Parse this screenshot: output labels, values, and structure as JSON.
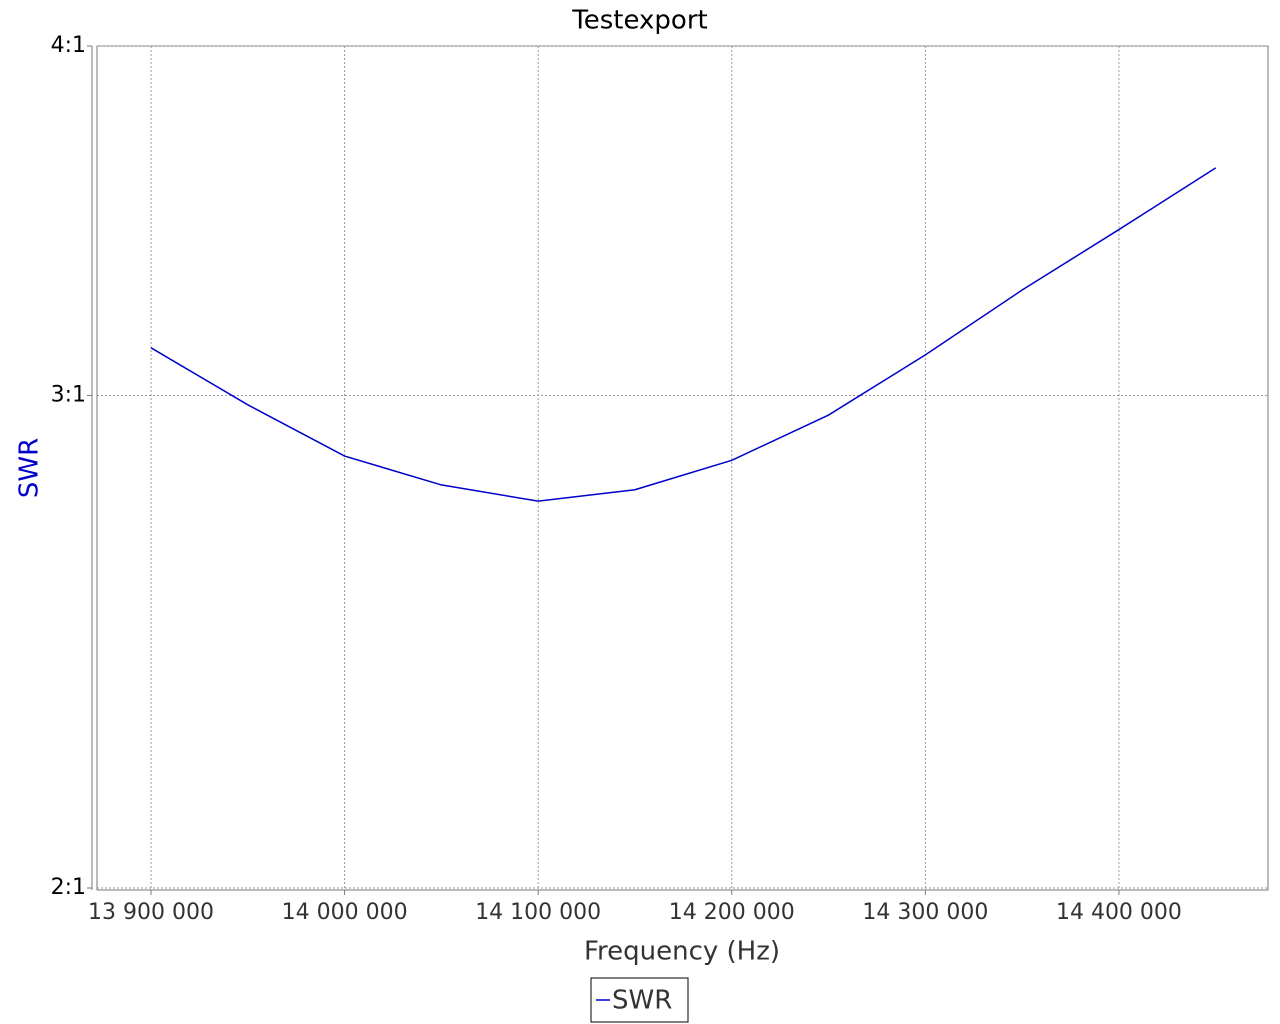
{
  "chart_data": {
    "type": "line",
    "title": "Testexport",
    "x_label": "Frequency (Hz)",
    "y_label": "SWR",
    "x": [
      13900000,
      13950000,
      14000000,
      14050000,
      14100000,
      14150000,
      14200000,
      14250000,
      14300000,
      14350000,
      14400000,
      14450000
    ],
    "series": [
      {
        "name": "SWR",
        "color": "#0000cc",
        "values": [
          3.12,
          2.977,
          2.854,
          2.787,
          2.75,
          2.776,
          2.844,
          2.952,
          3.102,
          3.272,
          3.439,
          3.618
        ]
      }
    ],
    "xlim": [
      13872100,
      14477000
    ],
    "xticks": [
      {
        "value": 13900000,
        "label": "13 900 000"
      },
      {
        "value": 14000000,
        "label": "14 000 000"
      },
      {
        "value": 14100000,
        "label": "14 100 000"
      },
      {
        "value": 14200000,
        "label": "14 200 000"
      },
      {
        "value": 14300000,
        "label": "14 300 000"
      },
      {
        "value": 14400000,
        "label": "14 400 000"
      }
    ],
    "ylim": [
      2,
      4
    ],
    "yticks": [
      {
        "value": 2,
        "label": "2:1"
      },
      {
        "value": 3,
        "label": "3:1"
      },
      {
        "value": 4,
        "label": "4:1"
      }
    ],
    "y_log": true,
    "grid": true
  }
}
